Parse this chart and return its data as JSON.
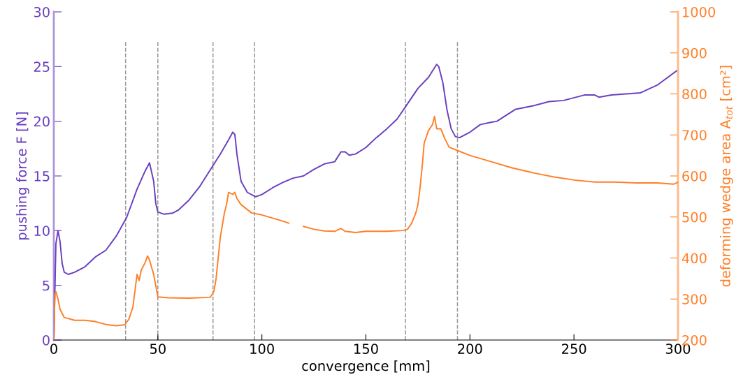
{
  "chart_data": {
    "type": "line",
    "xlabel": "convergence [mm]",
    "ylabel": "pushing force F [N]",
    "y2label": "deforming wedge area A$_{tot}$ [cm²]",
    "xlim": [
      0,
      300
    ],
    "xticks": [
      0,
      50,
      100,
      150,
      200,
      250,
      300
    ],
    "ylim": [
      0,
      30
    ],
    "yticks": [
      0,
      5,
      10,
      15,
      20,
      25,
      30
    ],
    "y2lim": [
      200,
      1000
    ],
    "y2ticks": [
      200,
      300,
      400,
      500,
      600,
      700,
      800,
      900,
      1000
    ],
    "grid": false,
    "legend": false,
    "line_style": "solid",
    "marker": "none",
    "series": [
      {
        "color": "#6a3fbf",
        "x": [
          0,
          1,
          2,
          3,
          4,
          5,
          7,
          10,
          15,
          20,
          25,
          30,
          35,
          40,
          44,
          46,
          48,
          49,
          50,
          53,
          57,
          60,
          65,
          70,
          76,
          80,
          84,
          86,
          87,
          88,
          90,
          93,
          97,
          100,
          105,
          110,
          115,
          120,
          125,
          130,
          135,
          138,
          140,
          142,
          145,
          150,
          155,
          160,
          165,
          170,
          175,
          180,
          184,
          185,
          187,
          189,
          191,
          193,
          195,
          200,
          205,
          210,
          213,
          217,
          222,
          230,
          238,
          245,
          255,
          260,
          262,
          268,
          275,
          282,
          290,
          300
        ],
        "values": [
          0,
          8.8,
          10,
          9,
          7,
          6.2,
          6.0,
          6.2,
          6.7,
          7.6,
          8.2,
          9.5,
          11.2,
          13.8,
          15.5,
          16.2,
          14.5,
          12.5,
          11.7,
          11.5,
          11.6,
          11.9,
          12.8,
          14.0,
          15.8,
          17.0,
          18.3,
          19.0,
          18.8,
          17.0,
          14.5,
          13.5,
          13.1,
          13.3,
          13.9,
          14.4,
          14.8,
          15.0,
          15.6,
          16.1,
          16.3,
          17.2,
          17.2,
          16.9,
          17.0,
          17.6,
          18.5,
          19.3,
          20.2,
          21.6,
          23.0,
          24.0,
          25.2,
          25.0,
          23.5,
          21.0,
          19.3,
          18.6,
          18.5,
          19.0,
          19.7,
          19.9,
          20.0,
          20.5,
          21.1,
          21.4,
          21.8,
          21.9,
          22.4,
          22.4,
          22.2,
          22.4,
          22.5,
          22.6,
          23.3,
          24.7
        ]
      },
      {
        "color": "#ff7f27",
        "axis": "y2",
        "x": [
          0,
          0.5,
          1,
          2,
          3,
          5,
          10,
          15,
          20,
          25,
          30,
          34,
          36,
          38,
          39,
          40,
          41,
          42,
          44,
          45,
          46,
          48,
          50,
          55,
          65,
          75,
          76,
          77,
          78,
          79,
          80,
          81,
          82,
          83,
          84,
          86,
          87,
          88,
          90,
          95,
          100,
          110,
          113,
          117,
          120,
          125,
          130,
          135,
          138,
          140,
          145,
          150,
          160,
          168,
          170,
          172,
          174,
          175,
          176,
          177,
          178,
          180,
          182,
          183,
          184,
          186,
          188,
          190,
          195,
          200,
          210,
          220,
          230,
          240,
          250,
          260,
          270,
          280,
          290,
          298,
          300
        ],
        "values": [
          200,
          310,
          318,
          300,
          275,
          255,
          248,
          248,
          245,
          238,
          235,
          237,
          250,
          280,
          320,
          360,
          345,
          370,
          390,
          405,
          395,
          360,
          305,
          303,
          302,
          304,
          310,
          320,
          350,
          400,
          450,
          480,
          510,
          530,
          560,
          555,
          560,
          545,
          530,
          510,
          505,
          490,
          485,
          null,
          477,
          470,
          466,
          465,
          472,
          465,
          462,
          465,
          465,
          467,
          470,
          485,
          510,
          530,
          570,
          620,
          680,
          710,
          725,
          745,
          715,
          715,
          690,
          670,
          660,
          650,
          635,
          620,
          608,
          598,
          590,
          585,
          585,
          583,
          583,
          580,
          585
        ]
      }
    ],
    "ref_lines": [
      {
        "axis": "x",
        "value": 34.5,
        "color": "#999999",
        "line_style": "dashed"
      },
      {
        "axis": "x",
        "value": 50,
        "color": "#999999",
        "line_style": "dashed"
      },
      {
        "axis": "x",
        "value": 76.5,
        "color": "#999999",
        "line_style": "dashed"
      },
      {
        "axis": "x",
        "value": 96.5,
        "color": "#999999",
        "line_style": "dashed"
      },
      {
        "axis": "x",
        "value": 169,
        "color": "#999999",
        "line_style": "dashed"
      },
      {
        "axis": "x",
        "value": 194,
        "color": "#999999",
        "line_style": "dashed"
      }
    ]
  }
}
